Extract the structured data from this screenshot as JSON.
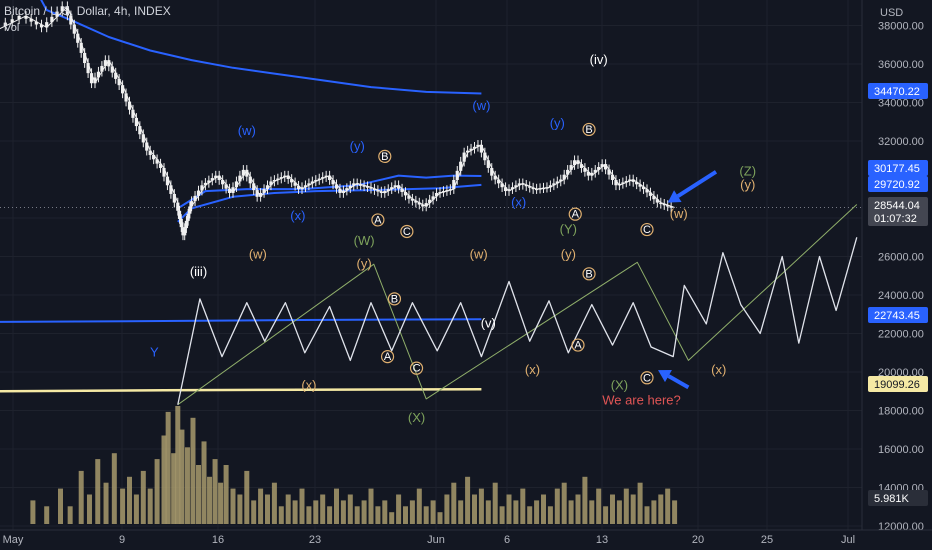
{
  "header": {
    "title": "Bitcoin / U.S. Dollar, 4h, INDEX",
    "sub": "Vol"
  },
  "colors": {
    "background": "#131722",
    "candle": "#f0f0f0",
    "volume": "#a89a6c",
    "blue_line": "#2962ff",
    "yellow_line": "#f5e9a4",
    "projection": "#e0e3eb",
    "green_path": "#8fae6a",
    "annotation_blue": "#2962ff",
    "annotation_orange": "#e0b070",
    "annotation_green": "#7ea35c",
    "annotation_red": "#e05555"
  },
  "chart_data": {
    "type": "line",
    "currency": "USD",
    "y_ticks": [
      "38000.00",
      "36000.00",
      "34000.00",
      "32000.00",
      "28000.00",
      "26000.00",
      "24000.00",
      "22000.00",
      "20000.00",
      "18000.00",
      "16000.00",
      "14000.00",
      "12000.00"
    ],
    "x_ticks": [
      "May",
      "9",
      "16",
      "23",
      "Jun",
      "6",
      "13",
      "20",
      "25",
      "Jul"
    ],
    "price_labels": [
      {
        "text": "34470.22",
        "style": "blue"
      },
      {
        "text": "30177.45",
        "style": "blue"
      },
      {
        "text": "29720.92",
        "style": "blue"
      },
      {
        "text": "28544.04",
        "style": "gray"
      },
      {
        "text": "01:07:32",
        "style": "gray"
      },
      {
        "text": "22743.45",
        "style": "blue"
      },
      {
        "text": "19099.26",
        "style": "yellow"
      },
      {
        "text": "5.981K",
        "style": "dark"
      }
    ],
    "ma_upper": [
      [
        0,
        40800
      ],
      [
        1.5,
        38800
      ],
      [
        3.5,
        38200
      ],
      [
        6,
        37400
      ],
      [
        9,
        36700
      ],
      [
        12,
        36200
      ],
      [
        15,
        35800
      ],
      [
        18,
        35500
      ],
      [
        21,
        35200
      ],
      [
        25,
        34800
      ],
      [
        29,
        34550
      ],
      [
        33,
        34470
      ]
    ],
    "ma_mid": [
      [
        11,
        27800
      ],
      [
        12,
        28500
      ],
      [
        15,
        29100
      ],
      [
        18,
        29300
      ],
      [
        21,
        29400
      ],
      [
        25,
        29450
      ],
      [
        30,
        29550
      ],
      [
        33,
        29720
      ]
    ],
    "ma_short": [
      [
        11,
        28500
      ],
      [
        13,
        29400
      ],
      [
        16,
        29500
      ],
      [
        20,
        29500
      ],
      [
        24,
        29700
      ],
      [
        27,
        30200
      ],
      [
        29,
        30100
      ],
      [
        31,
        30200
      ],
      [
        33,
        30180
      ]
    ],
    "ma_long": [
      [
        -2,
        22600
      ],
      [
        10,
        22650
      ],
      [
        20,
        22700
      ],
      [
        33,
        22743
      ]
    ],
    "yellow_line": [
      [
        -2,
        19000
      ],
      [
        10,
        19050
      ],
      [
        20,
        19080
      ],
      [
        33,
        19099
      ]
    ],
    "price": [
      [
        -2,
        37800
      ],
      [
        0,
        38500
      ],
      [
        1.5,
        37900
      ],
      [
        3,
        39000
      ],
      [
        4,
        37100
      ],
      [
        5,
        35000
      ],
      [
        6,
        36200
      ],
      [
        7,
        34900
      ],
      [
        8,
        33200
      ],
      [
        9,
        31500
      ],
      [
        10,
        30600
      ],
      [
        11,
        28800
      ],
      [
        11.5,
        27100
      ],
      [
        12,
        28600
      ],
      [
        13,
        29700
      ],
      [
        14,
        30200
      ],
      [
        15,
        29300
      ],
      [
        16,
        30500
      ],
      [
        17,
        29100
      ],
      [
        18,
        29900
      ],
      [
        19,
        30200
      ],
      [
        20,
        29500
      ],
      [
        21,
        29900
      ],
      [
        22,
        30200
      ],
      [
        23,
        29300
      ],
      [
        24,
        29800
      ],
      [
        25,
        29600
      ],
      [
        26,
        29300
      ],
      [
        27,
        29700
      ],
      [
        28,
        29000
      ],
      [
        29,
        28600
      ],
      [
        30,
        29300
      ],
      [
        31,
        29500
      ],
      [
        32,
        31400
      ],
      [
        33,
        31800
      ],
      [
        34,
        30200
      ],
      [
        35,
        29400
      ],
      [
        36,
        29800
      ],
      [
        37,
        29500
      ],
      [
        38,
        29600
      ],
      [
        39,
        30000
      ],
      [
        40,
        31000
      ],
      [
        41,
        30200
      ],
      [
        42,
        30800
      ],
      [
        43,
        29700
      ],
      [
        44,
        30000
      ],
      [
        45,
        29500
      ],
      [
        46,
        28800
      ],
      [
        47,
        28544
      ]
    ],
    "projection": [
      [
        11,
        18300
      ],
      [
        12.6,
        23800
      ],
      [
        14.2,
        20800
      ],
      [
        16,
        23600
      ],
      [
        17.3,
        21600
      ],
      [
        18.8,
        23600
      ],
      [
        20.2,
        21000
      ],
      [
        22,
        23400
      ],
      [
        23.5,
        20600
      ],
      [
        25,
        23600
      ],
      [
        26.5,
        21100
      ],
      [
        28,
        23600
      ],
      [
        29.8,
        21100
      ],
      [
        31.5,
        23600
      ],
      [
        33,
        20800
      ],
      [
        35,
        24700
      ],
      [
        36.5,
        21600
      ],
      [
        37.9,
        23700
      ],
      [
        39.3,
        21000
      ],
      [
        41,
        23500
      ],
      [
        42.5,
        21400
      ],
      [
        44,
        23600
      ],
      [
        45.3,
        21300
      ],
      [
        46.9,
        20800
      ],
      [
        47.7,
        24500
      ],
      [
        49.3,
        22500
      ],
      [
        50.5,
        26200
      ],
      [
        51.8,
        23500
      ],
      [
        53.2,
        22000
      ],
      [
        54.8,
        26000
      ],
      [
        56,
        21500
      ],
      [
        57.5,
        26000
      ],
      [
        58.7,
        23200
      ],
      [
        60.2,
        27000
      ]
    ],
    "green_path": [
      [
        11,
        18300
      ],
      [
        25.2,
        25600
      ],
      [
        29,
        18600
      ],
      [
        44.3,
        25700
      ],
      [
        48,
        20600
      ],
      [
        60.2,
        28700
      ]
    ],
    "annotations": [
      {
        "text": "(iv)",
        "x": 41.5,
        "y": 36000,
        "color": "white"
      },
      {
        "text": "(w)",
        "x": 16,
        "y": 32300,
        "color": "blue"
      },
      {
        "text": "(y)",
        "x": 24,
        "y": 31500,
        "color": "blue"
      },
      {
        "text": "(x)",
        "x": 19.7,
        "y": 27900,
        "color": "blue"
      },
      {
        "text": "(w)",
        "x": 33,
        "y": 33600,
        "color": "blue"
      },
      {
        "text": "(y)",
        "x": 38.5,
        "y": 32700,
        "color": "blue"
      },
      {
        "text": "(x)",
        "x": 35.7,
        "y": 28600,
        "color": "blue"
      },
      {
        "text": "(iii)",
        "x": 12.5,
        "y": 25000,
        "color": "white"
      },
      {
        "text": "(w)",
        "x": 16.8,
        "y": 25900,
        "color": "orange"
      },
      {
        "text": "(W)",
        "x": 24.5,
        "y": 26600,
        "color": "green"
      },
      {
        "text": "(y)",
        "x": 24.5,
        "y": 25400,
        "color": "orange"
      },
      {
        "text": "(w)",
        "x": 32.8,
        "y": 25900,
        "color": "orange"
      },
      {
        "text": "(Y)",
        "x": 39.3,
        "y": 27200,
        "color": "green"
      },
      {
        "text": "(y)",
        "x": 39.3,
        "y": 25900,
        "color": "orange"
      },
      {
        "text": "(w)",
        "x": 47.3,
        "y": 28000,
        "color": "orange"
      },
      {
        "text": "(Z)",
        "x": 52.3,
        "y": 30200,
        "color": "green"
      },
      {
        "text": "(y)",
        "x": 52.3,
        "y": 29500,
        "color": "orange"
      },
      {
        "text": "(v)",
        "x": 33.5,
        "y": 22300,
        "color": "white"
      },
      {
        "text": "Y",
        "x": 9.3,
        "y": 20800,
        "color": "blue"
      },
      {
        "text": "(x)",
        "x": 20.5,
        "y": 19100,
        "color": "orange"
      },
      {
        "text": "(x)",
        "x": 36.7,
        "y": 19900,
        "color": "orange"
      },
      {
        "text": "(x)",
        "x": 50.2,
        "y": 19900,
        "color": "orange"
      },
      {
        "text": "(X)",
        "x": 28.3,
        "y": 17400,
        "color": "green"
      },
      {
        "text": "(X)",
        "x": 43,
        "y": 19100,
        "color": "green"
      },
      {
        "text": "We are here?",
        "x": 44.6,
        "y": 18300,
        "color": "red"
      }
    ],
    "badges": [
      {
        "text": "A",
        "x": 25.5,
        "y": 27900
      },
      {
        "text": "B",
        "x": 26,
        "y": 31200
      },
      {
        "text": "C",
        "x": 27.6,
        "y": 27300
      },
      {
        "text": "A",
        "x": 39.8,
        "y": 28200
      },
      {
        "text": "B",
        "x": 40.8,
        "y": 32600
      },
      {
        "text": "C",
        "x": 45,
        "y": 27400
      },
      {
        "text": "B",
        "x": 26.7,
        "y": 23800
      },
      {
        "text": "A",
        "x": 26.2,
        "y": 20800
      },
      {
        "text": "C",
        "x": 28.3,
        "y": 20200
      },
      {
        "text": "B",
        "x": 40.8,
        "y": 25100
      },
      {
        "text": "A",
        "x": 40,
        "y": 21400
      },
      {
        "text": "C",
        "x": 45,
        "y": 19700
      }
    ],
    "arrows": [
      {
        "from": [
          50,
          30400
        ],
        "to": [
          46.5,
          28800
        ]
      },
      {
        "from": [
          48,
          19200
        ],
        "to": [
          45.8,
          20100
        ]
      }
    ],
    "volume": [
      [
        0.5,
        0.2
      ],
      [
        1.5,
        0.15
      ],
      [
        2.5,
        0.3
      ],
      [
        3.2,
        0.15
      ],
      [
        4,
        0.45
      ],
      [
        4.6,
        0.25
      ],
      [
        5.2,
        0.55
      ],
      [
        5.8,
        0.35
      ],
      [
        6.4,
        0.6
      ],
      [
        7,
        0.3
      ],
      [
        7.5,
        0.4
      ],
      [
        8,
        0.25
      ],
      [
        8.5,
        0.45
      ],
      [
        9,
        0.3
      ],
      [
        9.5,
        0.55
      ],
      [
        10,
        0.75
      ],
      [
        10.3,
        0.95
      ],
      [
        10.7,
        0.6
      ],
      [
        11,
        1.0
      ],
      [
        11.3,
        0.8
      ],
      [
        11.7,
        0.65
      ],
      [
        12.1,
        0.9
      ],
      [
        12.5,
        0.5
      ],
      [
        12.9,
        0.7
      ],
      [
        13.3,
        0.4
      ],
      [
        13.7,
        0.55
      ],
      [
        14.1,
        0.35
      ],
      [
        14.5,
        0.5
      ],
      [
        15,
        0.3
      ],
      [
        15.5,
        0.25
      ],
      [
        16,
        0.45
      ],
      [
        16.5,
        0.2
      ],
      [
        17,
        0.3
      ],
      [
        17.5,
        0.25
      ],
      [
        18,
        0.35
      ],
      [
        18.5,
        0.15
      ],
      [
        19,
        0.25
      ],
      [
        19.5,
        0.2
      ],
      [
        20,
        0.3
      ],
      [
        20.5,
        0.15
      ],
      [
        21,
        0.2
      ],
      [
        21.5,
        0.25
      ],
      [
        22,
        0.15
      ],
      [
        22.5,
        0.3
      ],
      [
        23,
        0.2
      ],
      [
        23.5,
        0.25
      ],
      [
        24,
        0.15
      ],
      [
        24.5,
        0.2
      ],
      [
        25,
        0.3
      ],
      [
        25.5,
        0.15
      ],
      [
        26,
        0.2
      ],
      [
        26.5,
        0.1
      ],
      [
        27,
        0.25
      ],
      [
        27.5,
        0.15
      ],
      [
        28,
        0.2
      ],
      [
        28.5,
        0.3
      ],
      [
        29,
        0.15
      ],
      [
        29.5,
        0.2
      ],
      [
        30,
        0.1
      ],
      [
        30.5,
        0.25
      ],
      [
        31,
        0.35
      ],
      [
        31.5,
        0.2
      ],
      [
        32,
        0.4
      ],
      [
        32.5,
        0.25
      ],
      [
        33,
        0.3
      ],
      [
        33.5,
        0.2
      ],
      [
        34,
        0.35
      ],
      [
        34.5,
        0.15
      ],
      [
        35,
        0.25
      ],
      [
        35.5,
        0.2
      ],
      [
        36,
        0.3
      ],
      [
        36.5,
        0.15
      ],
      [
        37,
        0.2
      ],
      [
        37.5,
        0.25
      ],
      [
        38,
        0.15
      ],
      [
        38.5,
        0.3
      ],
      [
        39,
        0.35
      ],
      [
        39.5,
        0.2
      ],
      [
        40,
        0.25
      ],
      [
        40.5,
        0.4
      ],
      [
        41,
        0.2
      ],
      [
        41.5,
        0.3
      ],
      [
        42,
        0.15
      ],
      [
        42.5,
        0.25
      ],
      [
        43,
        0.2
      ],
      [
        43.5,
        0.3
      ],
      [
        44,
        0.25
      ],
      [
        44.5,
        0.35
      ],
      [
        45,
        0.15
      ],
      [
        45.5,
        0.2
      ],
      [
        46,
        0.25
      ],
      [
        46.5,
        0.3
      ],
      [
        47,
        0.2
      ]
    ]
  }
}
